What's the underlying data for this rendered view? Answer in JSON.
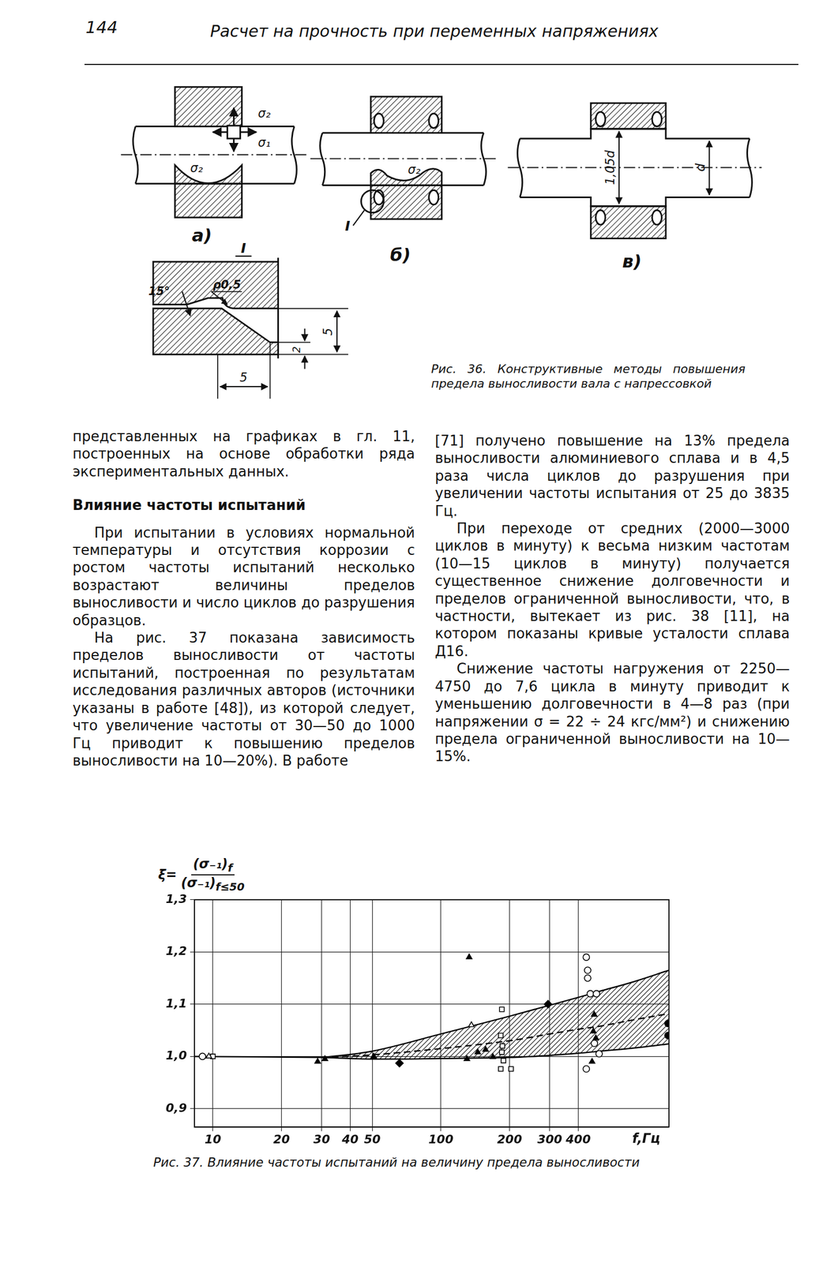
{
  "header": {
    "page": "144",
    "title": "Расчет на прочность при переменных напряжениях"
  },
  "figure36": {
    "a": {
      "tag": "а)",
      "labels": [
        "σ₂",
        "σ₁",
        "σ₂"
      ]
    },
    "b": {
      "tag": "б)",
      "labels": [
        "σ₂",
        "I"
      ]
    },
    "c": {
      "tag": "в)",
      "labels": [
        "1,05d",
        "d"
      ]
    },
    "detail": {
      "tag": "I",
      "angle": "15°",
      "radius": "ρ0,5",
      "dims": [
        "5",
        "2",
        "5"
      ]
    },
    "caption": "Рис. 36. Конструктивные методы повышения предела выносливости вала с напрессовкой"
  },
  "text": {
    "left": {
      "continuation": "представленных на графиках в гл. 11, построенных на основе обработки ряда экспериментальных данных.",
      "heading": "Влияние частоты испытаний",
      "paragraphs": [
        "При испытании в условиях нормальной температуры и отсутствия коррозии с ростом частоты испытаний несколько возрастают величины пределов выносливости и число циклов до разрушения образцов.",
        "На рис. 37 показана зависимость пределов выносливости от частоты испытаний, построенная по результатам исследования различных авторов (источники указаны в работе [48]), из которой следует, что увеличение частоты от 30—50 до 1000 Гц приводит к повышению пределов выносливости на 10—20%). В работе"
      ]
    },
    "right": {
      "continuation": "[71] получено повышение на 13% предела выносливости алюминиевого сплава и в 4,5 раза числа циклов до разрушения при увеличении частоты испытания от 25 до 3835 Гц.",
      "paragraphs": [
        "При переходе от средних (2000—3000 циклов в минуту) к весьма низким частотам (10—15 циклов в минуту) получается существенное снижение долговечности и пределов ограниченной выносливости, что, в частности, вытекает из рис. 38 [11], на котором показаны кривые усталости сплава Д16.",
        "Снижение частоты нагружения от 2250—4750 до 7,6 цикла в минуту приводит к уменьшению долговечности в 4—8 раз (при напряжении σ = 22 ÷ 24 кгс/мм²) и снижению предела ограниченной выносливости на 10—15%."
      ]
    }
  },
  "figure37": {
    "caption": "Рис. 37. Влияние частоты испытаний на величину предела выносливости"
  },
  "chart_data": {
    "type": "scatter",
    "x_label": "f,Гц",
    "y_label": {
      "lhs": "ξ=",
      "numerator": "(σ₋₁)",
      "numerator_sub": "f",
      "denominator": "(σ₋₁)",
      "denominator_sub": "f≤50"
    },
    "log": "x",
    "grid": true,
    "xlim": [
      8.3,
      1000
    ],
    "xticks": [
      10,
      20,
      30,
      40,
      50,
      100,
      200,
      300,
      400
    ],
    "ylim": [
      0.865,
      1.3
    ],
    "yticks": [
      {
        "value": 0.9,
        "label": "0,9"
      },
      {
        "value": 1.0,
        "label": "1,0"
      },
      {
        "value": 1.1,
        "label": "1,1"
      },
      {
        "value": 1.2,
        "label": "1,2"
      },
      {
        "value": 1.3,
        "label": "1,3"
      }
    ],
    "series": [
      {
        "type": "line",
        "line_style": "solid",
        "marker": "none",
        "color": "#000000",
        "x": [
          30,
          50,
          100,
          200,
          300,
          400,
          500,
          700,
          1000
        ],
        "values": [
          0.998,
          1.01,
          1.043,
          1.077,
          1.098,
          1.113,
          1.125,
          1.143,
          1.165
        ]
      },
      {
        "type": "line",
        "line_style": "solid",
        "marker": "none",
        "color": "#000000",
        "x": [
          30,
          50,
          100,
          200,
          300,
          400,
          500,
          700,
          1000
        ],
        "values": [
          0.998,
          0.995,
          0.996,
          0.998,
          1.002,
          1.006,
          1.01,
          1.016,
          1.024
        ]
      },
      {
        "type": "line",
        "line_style": "dashed",
        "marker": "none",
        "color": "#000000",
        "x": [
          30,
          50,
          100,
          200,
          300,
          400,
          500,
          700,
          1000
        ],
        "values": [
          0.998,
          1.003,
          1.015,
          1.03,
          1.043,
          1.052,
          1.058,
          1.07,
          1.082
        ]
      },
      {
        "type": "line",
        "line_style": "solid",
        "marker": "none",
        "color": "#000000",
        "x": [
          8.3,
          30
        ],
        "values": [
          1.0,
          0.998
        ]
      },
      {
        "type": "scatter",
        "marker": "circle_open",
        "color": "#000000",
        "x": [
          9,
          434,
          440,
          440,
          452,
          481,
          471,
          494,
          434
        ],
        "values": [
          1.0,
          1.19,
          1.165,
          1.15,
          1.12,
          1.12,
          1.025,
          1.005,
          0.976
        ]
      },
      {
        "type": "scatter",
        "marker": "triangle_open",
        "color": "#000000",
        "x": [
          9.6,
          136
        ],
        "values": [
          1.0,
          1.06
        ]
      },
      {
        "type": "scatter",
        "marker": "square_open",
        "color": "#000000",
        "x": [
          10,
          185,
          183,
          186,
          185,
          188,
          183,
          203
        ],
        "values": [
          1.0,
          1.09,
          1.04,
          1.02,
          1.008,
          0.992,
          0.976,
          0.976
        ]
      },
      {
        "type": "scatter",
        "marker": "triangle",
        "color": "#000000",
        "x": [
          28.8,
          31,
          50.7,
          133,
          130,
          145,
          157,
          169,
          470,
          466,
          478,
          460
        ],
        "values": [
          0.99,
          0.995,
          1.0,
          1.19,
          0.995,
          1.008,
          1.013,
          0.999,
          1.08,
          1.048,
          1.035,
          0.99
        ]
      },
      {
        "type": "scatter",
        "marker": "diamond",
        "color": "#000000",
        "x": [
          65.8,
          295
        ],
        "values": [
          0.987,
          1.1
        ]
      },
      {
        "type": "scatter",
        "marker": "circle",
        "color": "#000000",
        "x": [
          990,
          990
        ],
        "values": [
          1.063,
          1.04
        ]
      }
    ]
  }
}
